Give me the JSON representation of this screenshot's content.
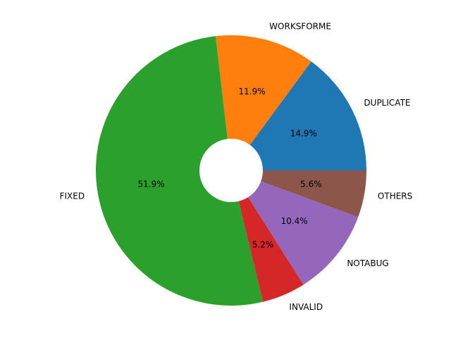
{
  "chart_data": {
    "type": "pie",
    "categories": [
      "DUPLICATE",
      "WORKSFORME",
      "FIXED",
      "INVALID",
      "NOTABUG",
      "OTHERS"
    ],
    "values": [
      14.9,
      11.9,
      51.9,
      5.2,
      10.4,
      5.6
    ],
    "value_labels": [
      "14.9%",
      "11.9%",
      "51.9%",
      "5.2%",
      "10.4%",
      "5.6%"
    ],
    "colors": [
      "#1f77b4",
      "#ff7f0e",
      "#2ca02c",
      "#d62728",
      "#9467bd",
      "#8c564b"
    ]
  }
}
